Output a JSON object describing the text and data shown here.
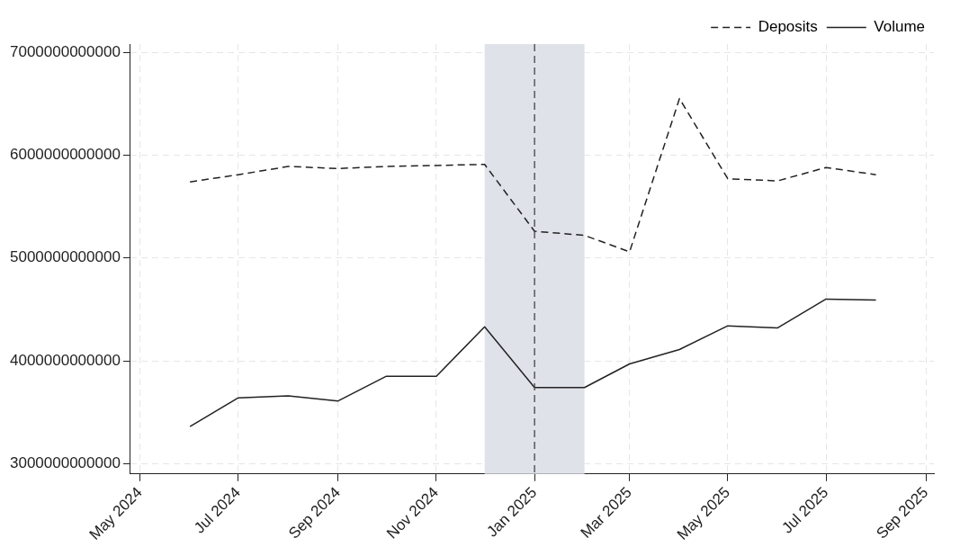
{
  "chart_data": {
    "type": "line",
    "x": [
      "2024-06",
      "2024-07",
      "2024-08",
      "2024-09",
      "2024-10",
      "2024-11",
      "2024-12",
      "2025-01",
      "2025-02",
      "2025-03",
      "2025-04",
      "2025-05",
      "2025-06",
      "2025-07",
      "2025-08"
    ],
    "series": [
      {
        "name": "Deposits",
        "color": "#222222",
        "line_style": "dashed",
        "values": [
          5740000000000,
          5810000000000,
          5890000000000,
          5870000000000,
          5890000000000,
          5900000000000,
          5910000000000,
          5260000000000,
          5220000000000,
          5060000000000,
          6550000000000,
          5770000000000,
          5750000000000,
          5880000000000,
          5810000000000
        ]
      },
      {
        "name": "Volume",
        "color": "#222222",
        "line_style": "solid",
        "values": [
          3360000000000,
          3640000000000,
          3660000000000,
          3610000000000,
          3850000000000,
          3850000000000,
          4330000000000,
          3740000000000,
          3740000000000,
          3970000000000,
          4110000000000,
          4340000000000,
          4320000000000,
          4600000000000,
          4590000000000
        ]
      }
    ],
    "xlim": [
      "2024-04-25",
      "2025-09-06"
    ],
    "xticks": [
      {
        "value": "2024-05",
        "label": "May 2024"
      },
      {
        "value": "2024-07",
        "label": "Jul 2024"
      },
      {
        "value": "2024-09",
        "label": "Sep 2024"
      },
      {
        "value": "2024-11",
        "label": "Nov 2024"
      },
      {
        "value": "2025-01",
        "label": "Jan 2025"
      },
      {
        "value": "2025-03",
        "label": "Mar 2025"
      },
      {
        "value": "2025-05",
        "label": "May 2025"
      },
      {
        "value": "2025-07",
        "label": "Jul 2025"
      },
      {
        "value": "2025-09",
        "label": "Sep 2025"
      }
    ],
    "ylim": [
      2900000000000,
      7080000000000
    ],
    "yticks": [
      3000000000000,
      4000000000000,
      5000000000000,
      6000000000000,
      7000000000000
    ],
    "ref_lines": [
      {
        "axis": "x",
        "value": "2025-01",
        "color": "#444444",
        "line_style": "dashed"
      }
    ],
    "bands": [
      {
        "axis": "x",
        "from": "2024-12",
        "to": "2025-02",
        "color": "#dfe2e9"
      }
    ],
    "grid": true,
    "legend": "top right",
    "marker": "none"
  }
}
